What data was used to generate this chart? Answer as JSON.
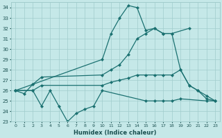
{
  "xlabel": "Humidex (Indice chaleur)",
  "xlim": [
    -0.5,
    23.5
  ],
  "ylim": [
    23,
    34.5
  ],
  "yticks": [
    23,
    24,
    25,
    26,
    27,
    28,
    29,
    30,
    31,
    32,
    33,
    34
  ],
  "xticks": [
    0,
    1,
    2,
    3,
    4,
    5,
    6,
    7,
    8,
    9,
    10,
    11,
    12,
    13,
    14,
    15,
    16,
    17,
    18,
    19,
    20,
    21,
    22,
    23
  ],
  "background_color": "#c5e8e8",
  "grid_color": "#a0cccc",
  "line_color": "#1a7070",
  "series": [
    {
      "x": [
        0,
        1,
        2,
        10,
        11,
        12,
        13,
        14,
        15,
        16,
        17,
        18,
        20
      ],
      "y": [
        26.0,
        25.7,
        26.6,
        29.0,
        31.5,
        33.0,
        34.2,
        34.0,
        31.8,
        32.0,
        31.5,
        31.5,
        32.0
      ]
    },
    {
      "x": [
        0,
        2,
        3,
        10,
        11,
        12,
        13,
        14,
        15,
        16,
        17,
        18,
        19,
        20,
        21,
        22,
        23
      ],
      "y": [
        26.0,
        26.6,
        27.3,
        27.5,
        28.0,
        28.5,
        29.5,
        31.0,
        31.5,
        32.0,
        31.5,
        31.5,
        28.0,
        26.5,
        26.0,
        25.5,
        25.0
      ]
    },
    {
      "x": [
        0,
        2,
        3,
        10,
        11,
        12,
        13,
        14,
        15,
        16,
        17,
        18,
        19,
        20,
        21,
        22,
        23
      ],
      "y": [
        26.0,
        26.0,
        26.5,
        26.5,
        26.8,
        27.0,
        27.2,
        27.5,
        27.5,
        27.5,
        27.5,
        27.5,
        28.0,
        26.5,
        26.0,
        25.2,
        25.0
      ]
    },
    {
      "x": [
        0,
        2,
        3,
        4,
        5,
        6,
        7,
        8,
        9,
        10,
        15,
        16,
        17,
        18,
        19,
        22,
        23
      ],
      "y": [
        26.0,
        26.0,
        24.5,
        26.0,
        24.5,
        23.0,
        23.8,
        24.2,
        24.5,
        26.0,
        25.0,
        25.0,
        25.0,
        25.0,
        25.2,
        25.0,
        25.0
      ]
    }
  ]
}
